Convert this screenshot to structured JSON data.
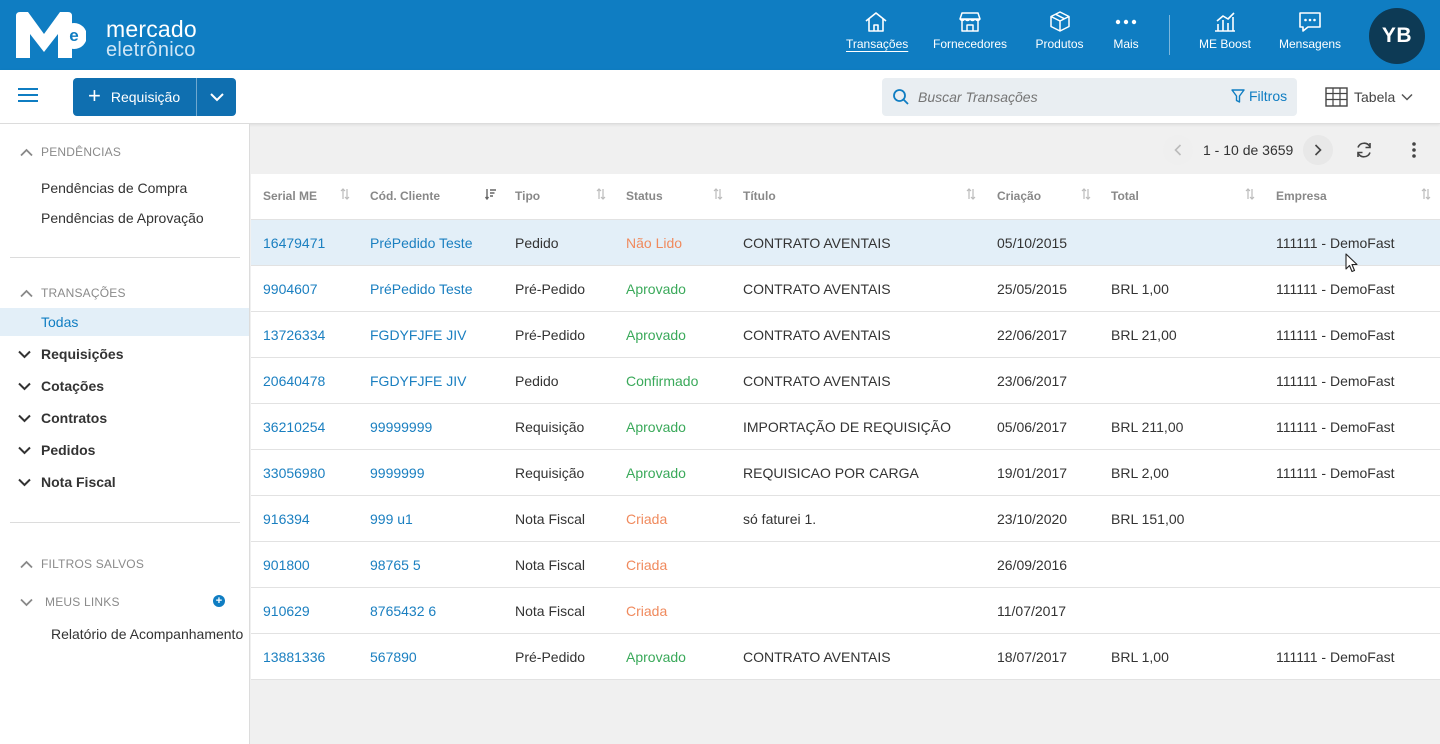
{
  "brand": {
    "line1": "mercado",
    "line2": "eletrônico"
  },
  "nav": [
    {
      "label": "Transações",
      "icon": "home-icon",
      "active": true
    },
    {
      "label": "Fornecedores",
      "icon": "store-icon",
      "active": false
    },
    {
      "label": "Produtos",
      "icon": "box-icon",
      "active": false
    },
    {
      "label": "Mais",
      "icon": "more-dots-icon",
      "active": false
    },
    {
      "label": "ME Boost",
      "icon": "chart-icon",
      "active": false
    },
    {
      "label": "Mensagens",
      "icon": "message-icon",
      "active": false
    }
  ],
  "user": {
    "initials": "YB"
  },
  "toolbar": {
    "requisicao_label": "Requisição",
    "search_placeholder": "Buscar Transações",
    "filtros_label": "Filtros",
    "view_label": "Tabela"
  },
  "sidebar": {
    "pendencias_title": "PENDÊNCIAS",
    "pendencias_items": [
      "Pendências de Compra",
      "Pendências de Aprovação"
    ],
    "transacoes_title": "TRANSAÇÕES",
    "transacoes_active": "Todas",
    "transacoes_groups": [
      "Requisições",
      "Cotações",
      "Contratos",
      "Pedidos",
      "Nota Fiscal"
    ],
    "filtros_salvos_title": "FILTROS SALVOS",
    "meus_links_title": "MEUS LINKS",
    "meus_links_items": [
      "Relatório de Acompanhamento"
    ]
  },
  "pager": {
    "text": "1 - 10 de 3659"
  },
  "table": {
    "columns": [
      "Serial ME",
      "Cód. Cliente",
      "Tipo",
      "Status",
      "Título",
      "Criação",
      "Total",
      "Empresa"
    ],
    "rows": [
      {
        "serial": "16479471",
        "cliente": "PréPedido Teste",
        "tipo": "Pedido",
        "status": "Não Lido",
        "status_color": "#f08a5d",
        "titulo": "CONTRATO AVENTAIS",
        "criacao": "05/10/2015",
        "total": "",
        "empresa": "111111 - DemoFast"
      },
      {
        "serial": "9904607",
        "cliente": "PréPedido Teste",
        "tipo": "Pré-Pedido",
        "status": "Aprovado",
        "status_color": "#3aa95a",
        "titulo": "CONTRATO AVENTAIS",
        "criacao": "25/05/2015",
        "total": "BRL 1,00",
        "empresa": "111111 - DemoFast"
      },
      {
        "serial": "13726334",
        "cliente": "FGDYFJFE JIV",
        "tipo": "Pré-Pedido",
        "status": "Aprovado",
        "status_color": "#3aa95a",
        "titulo": "CONTRATO AVENTAIS",
        "criacao": "22/06/2017",
        "total": "BRL 21,00",
        "empresa": "111111 - DemoFast"
      },
      {
        "serial": "20640478",
        "cliente": "FGDYFJFE JIV",
        "tipo": "Pedido",
        "status": "Confirmado",
        "status_color": "#3aa95a",
        "titulo": "CONTRATO AVENTAIS",
        "criacao": "23/06/2017",
        "total": "",
        "empresa": "111111 - DemoFast"
      },
      {
        "serial": "36210254",
        "cliente": "99999999",
        "tipo": "Requisição",
        "status": "Aprovado",
        "status_color": "#3aa95a",
        "titulo": "IMPORTAÇÃO DE REQUISIÇÃO",
        "criacao": "05/06/2017",
        "total": "BRL 211,00",
        "empresa": "111111 - DemoFast"
      },
      {
        "serial": "33056980",
        "cliente": "9999999",
        "tipo": "Requisição",
        "status": "Aprovado",
        "status_color": "#3aa95a",
        "titulo": "REQUISICAO POR CARGA",
        "criacao": "19/01/2017",
        "total": "BRL 2,00",
        "empresa": "111111 - DemoFast"
      },
      {
        "serial": "916394",
        "cliente": "999 u1",
        "tipo": "Nota Fiscal",
        "status": "Criada",
        "status_color": "#f08a5d",
        "titulo": "só faturei 1.",
        "criacao": "23/10/2020",
        "total": "BRL 151,00",
        "empresa": ""
      },
      {
        "serial": "901800",
        "cliente": "98765 5",
        "tipo": "Nota Fiscal",
        "status": "Criada",
        "status_color": "#f08a5d",
        "titulo": "",
        "criacao": "26/09/2016",
        "total": "",
        "empresa": ""
      },
      {
        "serial": "910629",
        "cliente": "8765432 6",
        "tipo": "Nota Fiscal",
        "status": "Criada",
        "status_color": "#f08a5d",
        "titulo": "",
        "criacao": "11/07/2017",
        "total": "",
        "empresa": ""
      },
      {
        "serial": "13881336",
        "cliente": "567890",
        "tipo": "Pré-Pedido",
        "status": "Aprovado",
        "status_color": "#3aa95a",
        "titulo": "CONTRATO AVENTAIS",
        "criacao": "18/07/2017",
        "total": "BRL 1,00",
        "empresa": "111111 - DemoFast"
      }
    ]
  }
}
